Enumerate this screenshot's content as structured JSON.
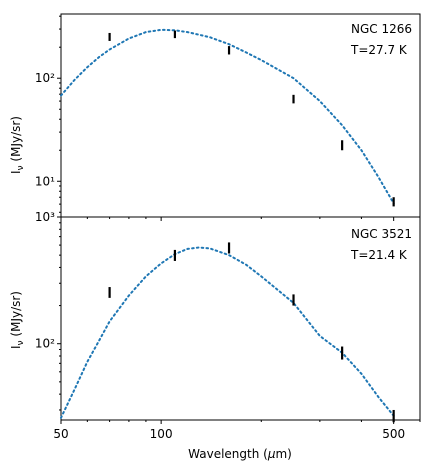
{
  "chart_data": [
    {
      "type": "line",
      "annotation": [
        "NGC 1266",
        "T=27.7 K"
      ],
      "ylabel": "I_ν (MJy/sr)",
      "xlabel": "",
      "x_scale": "log",
      "y_scale": "log",
      "xlim": [
        50,
        600
      ],
      "ylim": [
        4.5,
        420
      ],
      "y_ticks_major": [
        10,
        100
      ],
      "y_tick_labels": [
        "10¹",
        "10²"
      ],
      "series": [
        {
          "kind": "model_curve",
          "style": "dotted",
          "color": "#1f77b4",
          "x": [
            50,
            55,
            60,
            65,
            70,
            80,
            90,
            100,
            110,
            120,
            140,
            160,
            180,
            200,
            250,
            300,
            350,
            400,
            450,
            500
          ],
          "y": [
            68,
            97,
            128,
            160,
            190,
            243,
            280,
            295,
            292,
            280,
            250,
            214,
            178,
            150,
            100,
            60,
            35,
            20,
            11,
            6.1
          ]
        },
        {
          "kind": "measurements",
          "style": "errorbar",
          "color": "#000000",
          "x": [
            70,
            110,
            160,
            250,
            350,
            500
          ],
          "y": [
            252,
            268,
            186,
            63,
            22,
            6.3
          ],
          "y_err": [
            [
              230,
              275
            ],
            [
              245,
              290
            ],
            [
              170,
              205
            ],
            [
              57,
              69
            ],
            [
              20,
              25
            ],
            [
              5.7,
              7.0
            ]
          ]
        }
      ]
    },
    {
      "type": "line",
      "annotation": [
        "NGC 3521",
        "T=21.4 K"
      ],
      "ylabel": "I_ν (MJy/sr)",
      "xlabel": "Wavelength (μm)",
      "x_scale": "log",
      "y_scale": "log",
      "xlim": [
        50,
        600
      ],
      "ylim": [
        25,
        1000
      ],
      "y_ticks_major": [
        100,
        1000
      ],
      "y_tick_labels": [
        "10²",
        "10³"
      ],
      "x_ticks_major": [
        50,
        100,
        500
      ],
      "x_tick_labels": [
        "50",
        "100",
        "500"
      ],
      "series": [
        {
          "kind": "model_curve",
          "style": "dotted",
          "color": "#1f77b4",
          "x": [
            50,
            55,
            60,
            65,
            70,
            80,
            90,
            100,
            110,
            120,
            130,
            140,
            160,
            180,
            200,
            250,
            300,
            350,
            400,
            450,
            500
          ],
          "y": [
            26,
            44,
            72,
            105,
            150,
            240,
            340,
            430,
            510,
            560,
            575,
            565,
            500,
            420,
            340,
            210,
            115,
            85,
            58,
            38,
            27
          ]
        },
        {
          "kind": "measurements",
          "style": "errorbar",
          "color": "#000000",
          "x": [
            70,
            110,
            160,
            250,
            350,
            500
          ],
          "y": [
            255,
            500,
            570,
            220,
            85,
            27
          ],
          "y_err": [
            [
              230,
              280
            ],
            [
              450,
              550
            ],
            [
              515,
              630
            ],
            [
              200,
              245
            ],
            [
              75,
              95
            ],
            [
              24,
              30
            ]
          ]
        }
      ]
    }
  ]
}
